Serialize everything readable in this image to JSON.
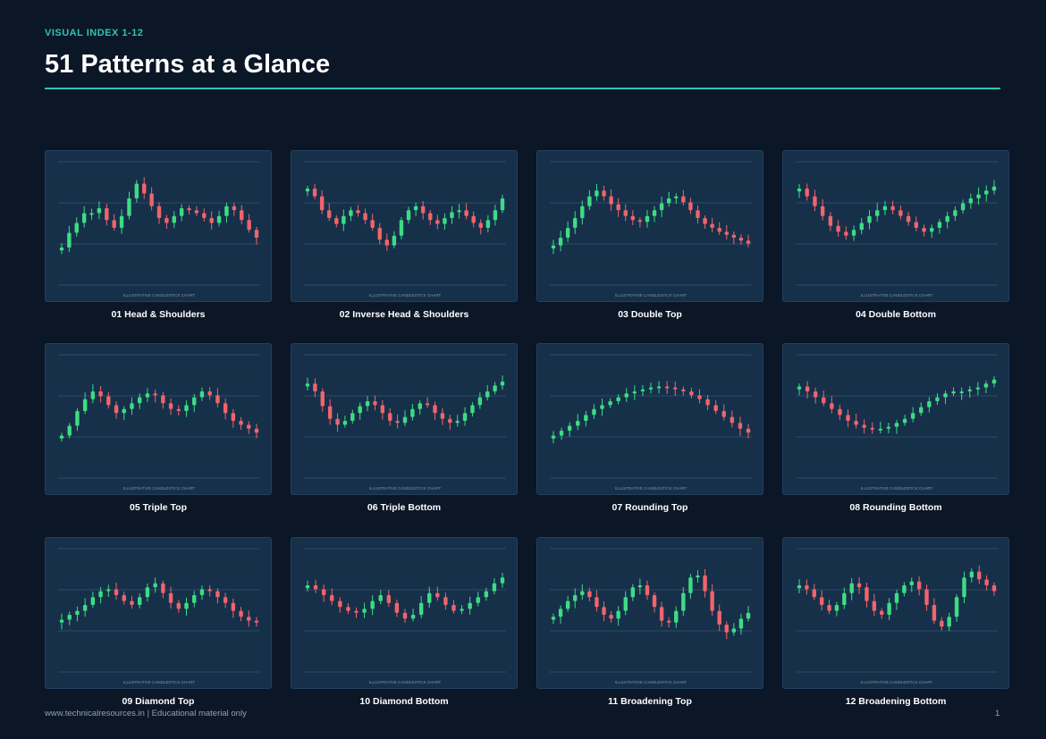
{
  "header": {
    "eyebrow": "VISUAL INDEX 1-12",
    "title": "51 Patterns at a Glance"
  },
  "colors": {
    "bull": "#3ddc84",
    "bear": "#f0646b",
    "accent": "#2ec4b6",
    "panel": "#16304a",
    "gridline": "#2c4a66"
  },
  "chart_watermark": "ILLUSTRATIVE CANDLESTICK CHART",
  "patterns": [
    {
      "caption": "01  Head & Shoulders",
      "shape": [
        0.2,
        0.35,
        0.45,
        0.55,
        0.55,
        0.6,
        0.48,
        0.4,
        0.52,
        0.7,
        0.85,
        0.75,
        0.62,
        0.5,
        0.45,
        0.52,
        0.6,
        0.58,
        0.55,
        0.5,
        0.45,
        0.52,
        0.62,
        0.58,
        0.48,
        0.38,
        0.3
      ]
    },
    {
      "caption": "02  Inverse Head & Shoulders",
      "shape": [
        0.8,
        0.72,
        0.58,
        0.5,
        0.44,
        0.52,
        0.58,
        0.55,
        0.48,
        0.4,
        0.28,
        0.22,
        0.32,
        0.48,
        0.58,
        0.62,
        0.55,
        0.48,
        0.44,
        0.5,
        0.56,
        0.58,
        0.52,
        0.45,
        0.4,
        0.48,
        0.58,
        0.7
      ]
    },
    {
      "caption": "03  Double Top",
      "shape": [
        0.22,
        0.3,
        0.4,
        0.5,
        0.62,
        0.72,
        0.78,
        0.72,
        0.64,
        0.58,
        0.52,
        0.48,
        0.46,
        0.52,
        0.58,
        0.65,
        0.7,
        0.72,
        0.66,
        0.58,
        0.5,
        0.44,
        0.4,
        0.36,
        0.33,
        0.3,
        0.27,
        0.24
      ]
    },
    {
      "caption": "04  Double Bottom",
      "shape": [
        0.8,
        0.72,
        0.62,
        0.52,
        0.42,
        0.36,
        0.32,
        0.38,
        0.45,
        0.52,
        0.58,
        0.62,
        0.58,
        0.52,
        0.46,
        0.4,
        0.36,
        0.4,
        0.46,
        0.52,
        0.58,
        0.65,
        0.7,
        0.74,
        0.78,
        0.82
      ]
    },
    {
      "caption": "05  Triple Top",
      "shape": [
        0.25,
        0.35,
        0.5,
        0.62,
        0.7,
        0.65,
        0.56,
        0.48,
        0.52,
        0.58,
        0.64,
        0.68,
        0.66,
        0.58,
        0.52,
        0.5,
        0.56,
        0.64,
        0.7,
        0.66,
        0.58,
        0.48,
        0.4,
        0.36,
        0.32,
        0.28
      ]
    },
    {
      "caption": "06  Triple Bottom",
      "shape": [
        0.78,
        0.7,
        0.55,
        0.42,
        0.36,
        0.4,
        0.48,
        0.55,
        0.6,
        0.56,
        0.48,
        0.4,
        0.38,
        0.44,
        0.52,
        0.58,
        0.56,
        0.48,
        0.42,
        0.38,
        0.4,
        0.48,
        0.56,
        0.64,
        0.7,
        0.76,
        0.8
      ]
    },
    {
      "caption": "07  Rounding Top",
      "shape": [
        0.25,
        0.3,
        0.35,
        0.4,
        0.46,
        0.52,
        0.56,
        0.6,
        0.64,
        0.68,
        0.7,
        0.72,
        0.74,
        0.75,
        0.74,
        0.72,
        0.7,
        0.66,
        0.62,
        0.56,
        0.5,
        0.44,
        0.38,
        0.32,
        0.28
      ]
    },
    {
      "caption": "08  Rounding Bottom",
      "shape": [
        0.75,
        0.7,
        0.64,
        0.58,
        0.52,
        0.46,
        0.4,
        0.36,
        0.33,
        0.32,
        0.32,
        0.34,
        0.38,
        0.42,
        0.48,
        0.54,
        0.6,
        0.64,
        0.68,
        0.7,
        0.7,
        0.72,
        0.74,
        0.78,
        0.82
      ]
    },
    {
      "caption": "09  Diamond Top",
      "shape": [
        0.35,
        0.4,
        0.44,
        0.5,
        0.58,
        0.64,
        0.66,
        0.6,
        0.54,
        0.5,
        0.58,
        0.68,
        0.72,
        0.62,
        0.52,
        0.46,
        0.52,
        0.6,
        0.66,
        0.64,
        0.58,
        0.52,
        0.44,
        0.38,
        0.34,
        0.32
      ]
    },
    {
      "caption": "10  Diamond Bottom",
      "shape": [
        0.7,
        0.66,
        0.6,
        0.54,
        0.48,
        0.44,
        0.42,
        0.46,
        0.54,
        0.6,
        0.52,
        0.42,
        0.36,
        0.4,
        0.52,
        0.62,
        0.58,
        0.5,
        0.44,
        0.46,
        0.52,
        0.58,
        0.64,
        0.72,
        0.78
      ]
    },
    {
      "caption": "11  Broadening Top",
      "shape": [
        0.38,
        0.46,
        0.54,
        0.6,
        0.64,
        0.58,
        0.48,
        0.4,
        0.36,
        0.44,
        0.58,
        0.68,
        0.7,
        0.6,
        0.48,
        0.34,
        0.32,
        0.44,
        0.62,
        0.78,
        0.8,
        0.64,
        0.44,
        0.3,
        0.22,
        0.26,
        0.36,
        0.42
      ]
    },
    {
      "caption": "12  Broadening Bottom",
      "shape": [
        0.7,
        0.66,
        0.58,
        0.5,
        0.44,
        0.5,
        0.62,
        0.72,
        0.68,
        0.54,
        0.44,
        0.4,
        0.52,
        0.62,
        0.7,
        0.74,
        0.66,
        0.5,
        0.34,
        0.28,
        0.38,
        0.58,
        0.78,
        0.84,
        0.76,
        0.7,
        0.64
      ]
    }
  ],
  "footer": {
    "left": "www.technicalresources.in  |  Educational material only",
    "page_number": "1"
  }
}
